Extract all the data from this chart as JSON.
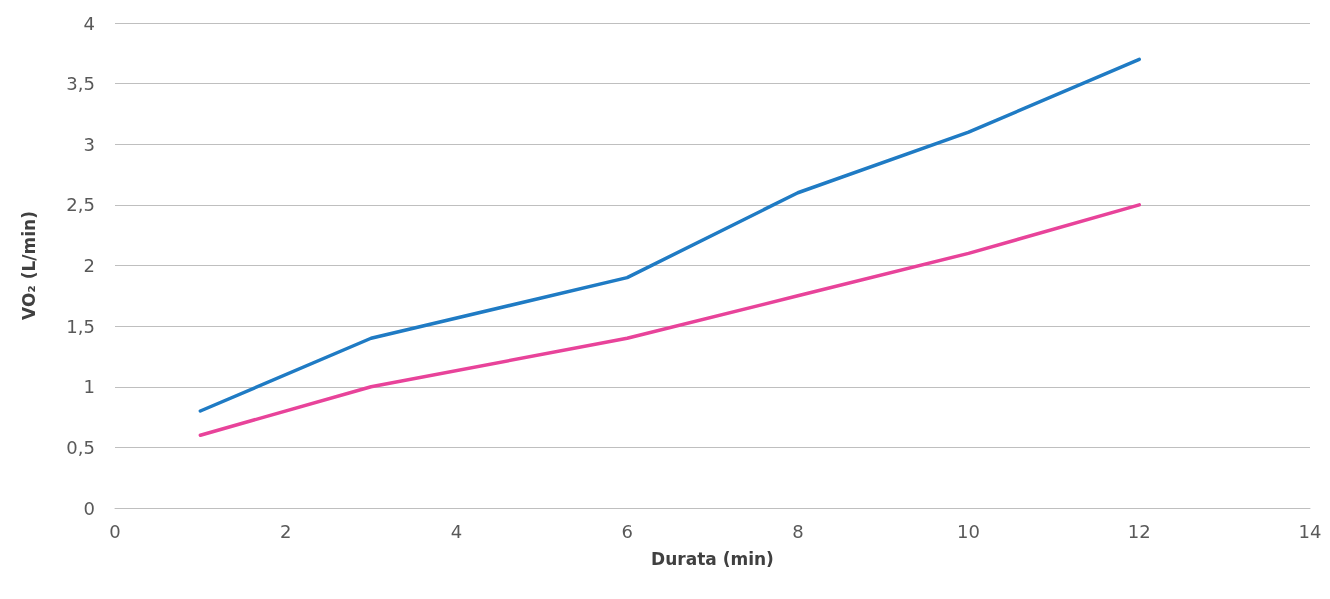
{
  "chart_data": {
    "type": "line",
    "xlabel": "Durata (min)",
    "ylabel": "VO₂ (L/min)",
    "x": [
      1,
      3,
      6,
      8,
      10,
      12
    ],
    "series": [
      {
        "color": "#1f7bc4",
        "values": [
          0.8,
          1.4,
          1.9,
          2.6,
          3.1,
          3.7
        ]
      },
      {
        "color": "#e8439a",
        "values": [
          0.6,
          1.0,
          1.4,
          1.75,
          2.1,
          2.5
        ]
      }
    ],
    "xlim": [
      0,
      14
    ],
    "xticks": [
      0,
      2,
      4,
      6,
      8,
      10,
      12,
      14
    ],
    "ylim": [
      0,
      4
    ],
    "yticks": [
      0,
      {
        "value": 0.5,
        "label": "0,5"
      },
      1,
      {
        "value": 1.5,
        "label": "1,5"
      },
      2,
      {
        "value": 2.5,
        "label": "2,5"
      },
      3,
      {
        "value": 3.5,
        "label": "3,5"
      },
      4
    ],
    "grid": "y",
    "marker": "none",
    "line_style": "solid"
  }
}
